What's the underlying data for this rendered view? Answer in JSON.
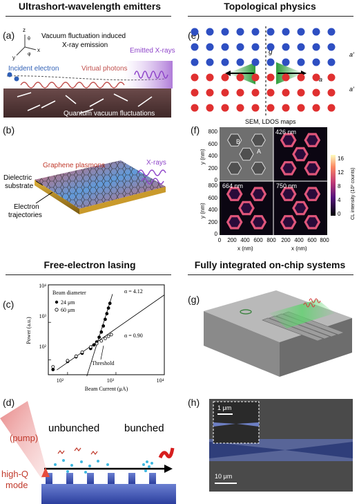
{
  "sections": {
    "top_left": "Ultrashort-wavelength emitters",
    "top_right": "Topological physics",
    "bottom_left": "Free-electron lasing",
    "bottom_right": "Fully integrated on-chip systems"
  },
  "panel_a": {
    "label": "(a)",
    "title_line1": "Vacuum fluctuation induced",
    "title_line2": "X-ray emission",
    "emitted": "Emitted X-rays",
    "incident": "Incident electron",
    "virtual": "Virtual photons",
    "quantum": "Quantum vacuum fluctuations",
    "axis_z": "z",
    "axis_x": "x",
    "axis_y": "y",
    "axis_theta": "θ",
    "axis_phi": "φ"
  },
  "panel_b": {
    "label": "(b)",
    "graphene": "Graphene plasmons",
    "xrays": "X-rays",
    "dielectric_1": "Dielectric",
    "dielectric_2": "substrate",
    "electron_1": "Electron",
    "electron_2": "trajectories"
  },
  "panel_c": {
    "label": "(c)",
    "legend_title": "Beam diameter",
    "legend_1": "24 μm",
    "legend_2": "60 μm",
    "alpha_1": "α = 4.12",
    "alpha_2": "α = 0.90",
    "threshold": "Threshold",
    "xlabel": "Beam Current (μA)",
    "ylabel": "Power (a.u.)",
    "x_ticks": [
      "10²",
      "10³",
      "10⁴"
    ],
    "y_ticks": [
      "10⁴",
      "10³",
      "10²"
    ]
  },
  "panel_d": {
    "label": "(d)",
    "unbunched": "unbunched",
    "bunched": "bunched",
    "pump": "(pump)",
    "highq_1": "high-Q",
    "highq_2": "mode"
  },
  "panel_e": {
    "label": "(e)",
    "v": "v",
    "g": "g",
    "a_prime_1": "a′",
    "a_prime_2": "a′",
    "a": "a"
  },
  "panel_f": {
    "label": "(f)",
    "title": "SEM, LDOS maps",
    "tag_426": "426 nm",
    "tag_664": "664 nm",
    "tag_750": "750 nm",
    "B": "B",
    "A": "A",
    "ylabel": "y (nm)",
    "xlabel": "x (nm)",
    "y_ticks": [
      "800",
      "600",
      "400",
      "200",
      "0"
    ],
    "x_ticks_1": [
      "0",
      "200",
      "400",
      "600",
      "800"
    ],
    "x_ticks_2": [
      "200",
      "400",
      "600",
      "800"
    ],
    "cb_label": "CL intensity (10³ counts)",
    "cb_ticks": [
      "16",
      "12",
      "8",
      "4",
      "0"
    ]
  },
  "panel_g": {
    "label": "(g)"
  },
  "panel_h": {
    "label": "(h)",
    "scale_inset": "1 μm",
    "scale_main": "10 μm"
  },
  "chart_data": {
    "type": "scatter",
    "title": "",
    "xlabel": "Beam Current (μA)",
    "ylabel": "Power (a.u.)",
    "xscale": "log",
    "yscale": "log",
    "xlim": [
      40,
      10000
    ],
    "ylim": [
      40,
      10000
    ],
    "legend_title": "Beam diameter",
    "legend_placement": "top-left",
    "series": [
      {
        "name": "24 μm",
        "marker": "filled-circle",
        "x": [
          50,
          100,
          150,
          200,
          300,
          350,
          400,
          450,
          500,
          550,
          600,
          650,
          700,
          750
        ],
        "y": [
          55,
          90,
          120,
          150,
          200,
          250,
          300,
          400,
          550,
          800,
          1200,
          1700,
          2400,
          3200
        ]
      },
      {
        "name": "60 μm",
        "marker": "open-circle",
        "x": [
          50,
          100,
          150,
          200,
          300,
          400,
          500,
          600,
          700,
          800
        ],
        "y": [
          65,
          95,
          125,
          160,
          220,
          270,
          320,
          370,
          420,
          470
        ]
      }
    ],
    "fits": [
      {
        "label": "α = 4.12",
        "slope": 4.12
      },
      {
        "label": "α = 0.90",
        "slope": 0.9
      }
    ],
    "annotation": "Threshold"
  }
}
